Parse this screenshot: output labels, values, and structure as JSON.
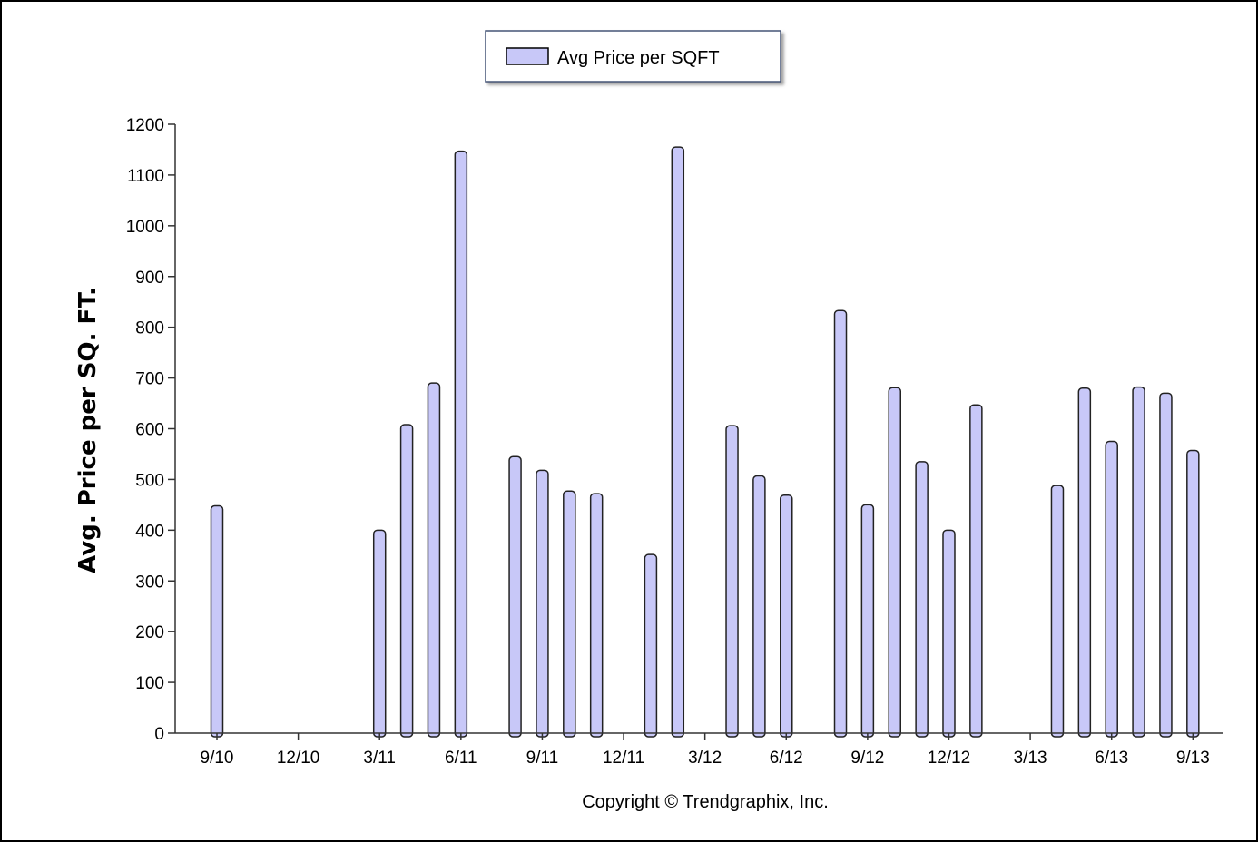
{
  "chart_data": {
    "type": "bar",
    "legend": {
      "label": "Avg Price per SQFT",
      "position": "top-center"
    },
    "ylabel": "Avg. Price per SQ. FT.",
    "xlabel": "",
    "ylim": [
      0,
      1200
    ],
    "y_ticks": [
      0,
      100,
      200,
      300,
      400,
      500,
      600,
      700,
      800,
      900,
      1000,
      1100,
      1200
    ],
    "x_tick_labels": [
      "9/10",
      "12/10",
      "3/11",
      "6/11",
      "9/11",
      "12/11",
      "3/12",
      "6/12",
      "9/12",
      "12/12",
      "3/13",
      "6/13",
      "9/13"
    ],
    "categories": [
      "9/10",
      "10/10",
      "11/10",
      "12/10",
      "1/11",
      "2/11",
      "3/11",
      "4/11",
      "5/11",
      "6/11",
      "7/11",
      "8/11",
      "9/11",
      "10/11",
      "11/11",
      "12/11",
      "1/12",
      "2/12",
      "3/12",
      "4/12",
      "5/12",
      "6/12",
      "7/12",
      "8/12",
      "9/12",
      "10/12",
      "11/12",
      "12/12",
      "1/13",
      "2/13",
      "3/13",
      "4/13",
      "5/13",
      "6/13",
      "7/13",
      "8/13",
      "9/13"
    ],
    "series": [
      {
        "name": "Avg Price per SQFT",
        "color": "#c8c8f8",
        "values": [
          448,
          null,
          null,
          null,
          null,
          null,
          400,
          608,
          690,
          1147,
          null,
          545,
          518,
          477,
          472,
          null,
          352,
          1155,
          null,
          606,
          507,
          469,
          null,
          833,
          450,
          681,
          535,
          400,
          647,
          null,
          null,
          488,
          680,
          575,
          682,
          670,
          557
        ]
      }
    ]
  },
  "copyright": "Copyright © Trendgraphix, Inc."
}
